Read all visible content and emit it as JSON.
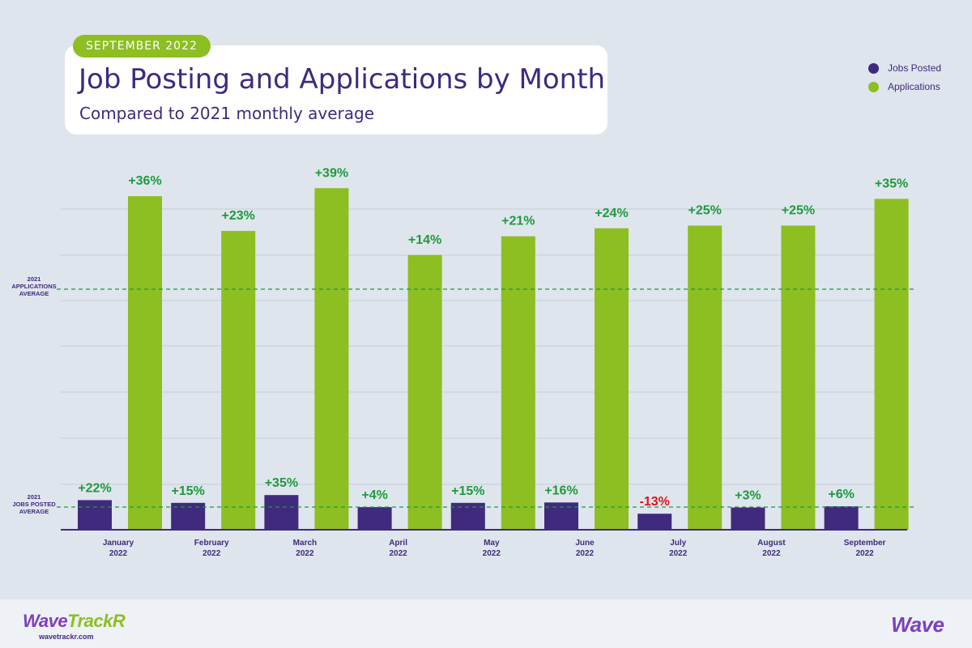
{
  "header": {
    "badge": "SEPTEMBER 2022",
    "title": "Job Posting and Applications by Month",
    "subtitle": "Compared to 2021 monthly average"
  },
  "legend": [
    {
      "label": "Jobs Posted",
      "color": "#3f2a7e"
    },
    {
      "label": "Applications",
      "color": "#8dbe22"
    }
  ],
  "chart_data": {
    "type": "bar",
    "categories": [
      [
        "January",
        "2022"
      ],
      [
        "February",
        "2022"
      ],
      [
        "March",
        "2022"
      ],
      [
        "April",
        "2022"
      ],
      [
        "May",
        "2022"
      ],
      [
        "June",
        "2022"
      ],
      [
        "July",
        "2022"
      ],
      [
        "August",
        "2022"
      ],
      [
        "September",
        "2022"
      ]
    ],
    "series": [
      {
        "name": "Jobs Posted",
        "color": "#3f2a7e",
        "values": [
          22,
          15,
          35,
          4,
          15,
          16,
          -13,
          3,
          6
        ],
        "labels": [
          "+22%",
          "+15%",
          "+35%",
          "+4%",
          "+15%",
          "+16%",
          "-13%",
          "+3%",
          "+6%"
        ]
      },
      {
        "name": "Applications",
        "color": "#8dbe22",
        "values": [
          36,
          23,
          39,
          14,
          21,
          24,
          25,
          25,
          35
        ],
        "labels": [
          "+36%",
          "+23%",
          "+39%",
          "+14%",
          "+21%",
          "+24%",
          "+25%",
          "+25%",
          "+35%"
        ]
      }
    ],
    "reference_lines": [
      {
        "label": [
          "2021",
          "APPLICATIONS",
          "AVERAGE"
        ],
        "series": "Applications"
      },
      {
        "label": [
          "2021",
          "JOBS POSTED",
          "AVERAGE"
        ],
        "series": "Jobs Posted"
      }
    ],
    "positive_label_color": "#1d9a3e",
    "negative_label_color": "#e3101b",
    "grid": true
  },
  "footer": {
    "brand_main": "Wave",
    "brand_accent": "TrackR",
    "url": "wavetrackr.com",
    "logo_right": "Wave"
  }
}
